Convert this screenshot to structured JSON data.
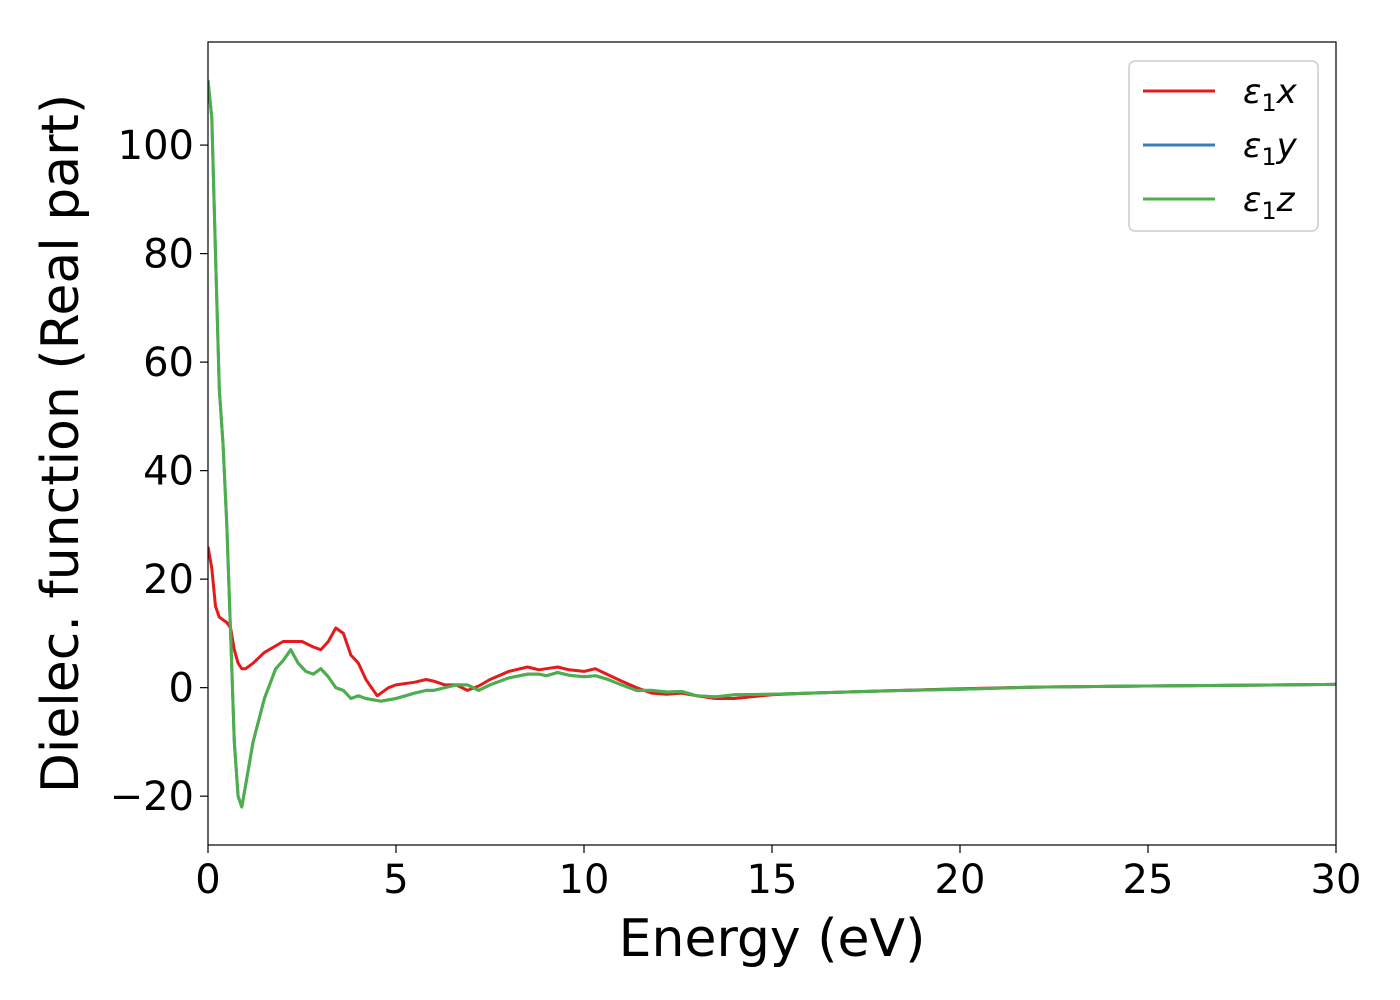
{
  "chart_data": {
    "type": "line",
    "xlabel": "Energy (eV)",
    "ylabel": "Dielec. function (Real part)",
    "xlim": [
      0,
      30
    ],
    "ylim": [
      -29,
      119
    ],
    "xticks": [
      0,
      5,
      10,
      15,
      20,
      25,
      30
    ],
    "xtick_labels": [
      "0",
      "5",
      "10",
      "15",
      "20",
      "25",
      "30"
    ],
    "yticks": [
      -20,
      0,
      20,
      40,
      60,
      80,
      100
    ],
    "ytick_labels": [
      "−20",
      "0",
      "20",
      "40",
      "60",
      "80",
      "100"
    ],
    "grid": false,
    "legend_position": "top-right",
    "series": [
      {
        "name": "ε₁x",
        "legend_main": "ε",
        "legend_sub": "1",
        "legend_suffix": "x",
        "color": "#e41a1c",
        "x": [
          0,
          0.1,
          0.2,
          0.3,
          0.4,
          0.5,
          0.6,
          0.7,
          0.8,
          0.9,
          1.0,
          1.2,
          1.5,
          2.0,
          2.5,
          2.8,
          3.0,
          3.2,
          3.4,
          3.6,
          3.8,
          4.0,
          4.2,
          4.5,
          4.8,
          5.0,
          5.5,
          5.8,
          6.0,
          6.3,
          6.6,
          6.9,
          7.2,
          7.5,
          8.0,
          8.5,
          8.8,
          9.0,
          9.3,
          9.6,
          10.0,
          10.3,
          10.6,
          11.0,
          11.4,
          11.8,
          12.2,
          12.6,
          13.0,
          13.5,
          14.0,
          15.0,
          16.0,
          18.0,
          20.0,
          22.0,
          25.0,
          30.0
        ],
        "y": [
          26,
          22,
          15,
          13,
          12.5,
          12,
          11,
          7,
          4.5,
          3.5,
          3.5,
          4.5,
          6.5,
          8.5,
          8.5,
          7.5,
          7,
          8.5,
          11,
          10,
          6,
          4.5,
          1.5,
          -1.5,
          0,
          0.5,
          1,
          1.5,
          1.2,
          0.5,
          0.5,
          -0.5,
          0.3,
          1.5,
          3,
          3.8,
          3.3,
          3.5,
          3.8,
          3.3,
          3,
          3.5,
          2.5,
          1.2,
          0,
          -1,
          -1.2,
          -1.0,
          -1.5,
          -2.0,
          -2.0,
          -1.3,
          -1.0,
          -0.6,
          -0.2,
          0.1,
          0.3,
          0.6
        ]
      },
      {
        "name": "ε₁y",
        "legend_main": "ε",
        "legend_sub": "1",
        "legend_suffix": "y",
        "color": "#377eb8",
        "x": [
          0,
          0.1,
          0.2,
          0.3,
          0.4,
          0.5,
          0.6,
          0.7,
          0.8,
          0.9,
          1.0,
          1.2,
          1.5,
          1.8,
          2.0,
          2.2,
          2.4,
          2.6,
          2.8,
          3.0,
          3.2,
          3.4,
          3.6,
          3.8,
          4.0,
          4.2,
          4.6,
          5.0,
          5.5,
          5.8,
          6.0,
          6.3,
          6.6,
          6.9,
          7.2,
          7.5,
          8.0,
          8.5,
          8.8,
          9.0,
          9.3,
          9.6,
          10.0,
          10.3,
          10.6,
          11.0,
          11.4,
          11.8,
          12.2,
          12.6,
          13.0,
          13.5,
          14.0,
          15.0,
          16.0,
          18.0,
          20.0,
          22.0,
          25.0,
          30.0
        ],
        "y": [
          112,
          105,
          80,
          55,
          45,
          30,
          10,
          -10,
          -20,
          -22,
          -18,
          -10,
          -2,
          3.5,
          5,
          7,
          4.5,
          3,
          2.5,
          3.5,
          2,
          0,
          -0.5,
          -2,
          -1.5,
          -2,
          -2.5,
          -2,
          -1,
          -0.5,
          -0.5,
          0,
          0.5,
          0.5,
          -0.5,
          0.5,
          1.8,
          2.5,
          2.5,
          2.2,
          2.8,
          2.3,
          2,
          2.2,
          1.6,
          0.5,
          -0.5,
          -0.5,
          -0.8,
          -0.7,
          -1.5,
          -1.7,
          -1.3,
          -1.2,
          -1.0,
          -0.6,
          -0.3,
          0.1,
          0.3,
          0.6
        ]
      },
      {
        "name": "ε₁z",
        "legend_main": "ε",
        "legend_sub": "1",
        "legend_suffix": "z",
        "color": "#4daf4a",
        "x": [
          0,
          0.1,
          0.2,
          0.3,
          0.4,
          0.5,
          0.6,
          0.7,
          0.8,
          0.9,
          1.0,
          1.2,
          1.5,
          1.8,
          2.0,
          2.2,
          2.4,
          2.6,
          2.8,
          3.0,
          3.2,
          3.4,
          3.6,
          3.8,
          4.0,
          4.2,
          4.6,
          5.0,
          5.5,
          5.8,
          6.0,
          6.3,
          6.6,
          6.9,
          7.2,
          7.5,
          8.0,
          8.5,
          8.8,
          9.0,
          9.3,
          9.6,
          10.0,
          10.3,
          10.6,
          11.0,
          11.4,
          11.8,
          12.2,
          12.6,
          13.0,
          13.5,
          14.0,
          15.0,
          16.0,
          18.0,
          20.0,
          22.0,
          25.0,
          30.0
        ],
        "y": [
          112,
          105,
          80,
          55,
          45,
          30,
          10,
          -10,
          -20,
          -22,
          -18,
          -10,
          -2,
          3.5,
          5,
          7,
          4.5,
          3,
          2.5,
          3.5,
          2,
          0,
          -0.5,
          -2,
          -1.5,
          -2,
          -2.5,
          -2,
          -1,
          -0.5,
          -0.5,
          0,
          0.5,
          0.5,
          -0.5,
          0.5,
          1.8,
          2.5,
          2.5,
          2.2,
          2.8,
          2.3,
          2,
          2.2,
          1.6,
          0.5,
          -0.5,
          -0.5,
          -0.8,
          -0.7,
          -1.5,
          -1.7,
          -1.3,
          -1.2,
          -1.0,
          -0.6,
          -0.3,
          0.1,
          0.3,
          0.6
        ]
      }
    ]
  }
}
